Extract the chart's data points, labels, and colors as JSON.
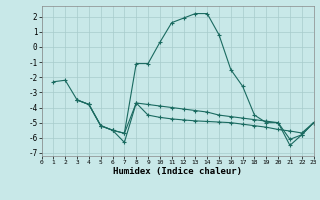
{
  "xlabel": "Humidex (Indice chaleur)",
  "background_color": "#c8e8e8",
  "grid_color": "#a8cccc",
  "line_color": "#1a6a60",
  "xlim": [
    0,
    23
  ],
  "ylim": [
    -7.2,
    2.7
  ],
  "yticks": [
    2,
    1,
    0,
    -1,
    -2,
    -3,
    -4,
    -5,
    -6,
    -7
  ],
  "xticks": [
    0,
    1,
    2,
    3,
    4,
    5,
    6,
    7,
    8,
    9,
    10,
    11,
    12,
    13,
    14,
    15,
    16,
    17,
    18,
    19,
    20,
    21,
    22,
    23
  ],
  "series": [
    {
      "x": [
        1,
        2,
        3,
        4,
        5,
        6,
        7,
        8,
        9,
        10,
        11,
        12,
        13,
        14,
        15,
        16,
        17,
        18,
        19,
        20,
        21,
        22,
        23
      ],
      "y": [
        -2.3,
        -2.2,
        -3.5,
        -3.8,
        -5.2,
        -5.5,
        -5.7,
        -1.1,
        -1.1,
        0.3,
        1.6,
        1.9,
        2.2,
        2.2,
        0.8,
        -1.5,
        -2.6,
        -4.5,
        -5.0,
        -5.0,
        -6.5,
        -5.8,
        -5.0
      ]
    },
    {
      "x": [
        3,
        4,
        5,
        6,
        7,
        8,
        9,
        10,
        11,
        12,
        13,
        14,
        15,
        16,
        17,
        18,
        19,
        20,
        21,
        22,
        23
      ],
      "y": [
        -3.5,
        -3.8,
        -5.2,
        -5.5,
        -5.7,
        -3.7,
        -3.8,
        -3.9,
        -4.0,
        -4.1,
        -4.2,
        -4.3,
        -4.5,
        -4.6,
        -4.7,
        -4.8,
        -4.9,
        -5.0,
        -6.1,
        -5.8,
        -5.0
      ]
    },
    {
      "x": [
        3,
        4,
        5,
        6,
        7,
        8,
        9,
        10,
        11,
        12,
        13,
        14,
        15,
        16,
        17,
        18,
        19,
        20,
        21,
        22,
        23
      ],
      "y": [
        -3.5,
        -3.8,
        -5.2,
        -5.5,
        -6.3,
        -3.7,
        -4.5,
        -4.65,
        -4.75,
        -4.82,
        -4.88,
        -4.92,
        -4.96,
        -5.0,
        -5.1,
        -5.2,
        -5.3,
        -5.45,
        -5.55,
        -5.68,
        -5.0
      ]
    }
  ]
}
